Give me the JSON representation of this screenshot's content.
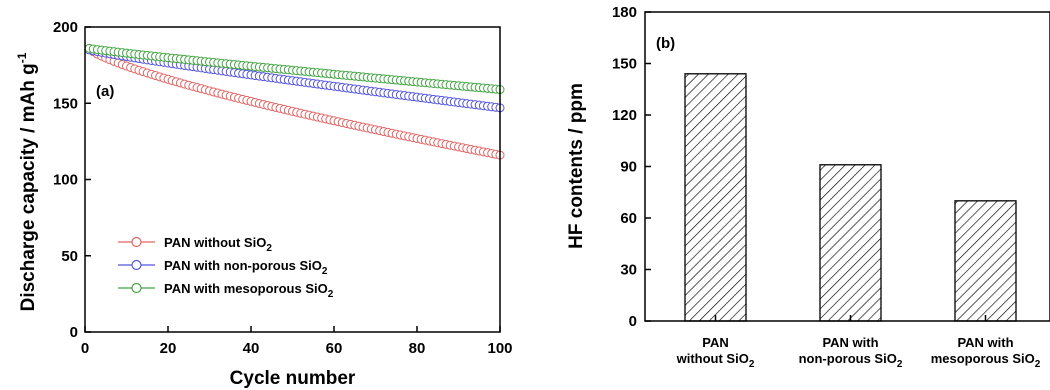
{
  "chart_data": [
    {
      "type": "scatter",
      "panel_label": "(a)",
      "xlabel": "Cycle number",
      "ylabel": "Discharge capacity / mAh g",
      "ylabel_superscript": "-1",
      "xlim": [
        0,
        100
      ],
      "ylim": [
        0,
        200
      ],
      "xticks": [
        0,
        20,
        40,
        60,
        80,
        100
      ],
      "yticks": [
        0,
        50,
        100,
        150,
        200
      ],
      "grid": false,
      "legend_position": "bottom-left",
      "series": [
        {
          "name": "PAN without SiO",
          "name_sub": "2",
          "color": "#e06666",
          "start": 186,
          "end": 116
        },
        {
          "name": "PAN with non-porous SiO",
          "name_sub": "2",
          "color": "#5555dd",
          "start": 185,
          "end": 147
        },
        {
          "name": "PAN with mesoporous SiO",
          "name_sub": "2",
          "color": "#44a444",
          "start": 186,
          "end": 159
        }
      ]
    },
    {
      "type": "bar",
      "panel_label": "(b)",
      "xlabel": "",
      "ylabel": "HF contents / ppm",
      "ylim": [
        0,
        180
      ],
      "yticks": [
        0,
        30,
        60,
        90,
        120,
        150,
        180
      ],
      "grid": false,
      "pattern": "diagonal-hatch",
      "categories": [
        {
          "line1": "PAN",
          "line2": "without SiO",
          "sub": "2"
        },
        {
          "line1": "PAN with",
          "line2": "non-porous SiO",
          "sub": "2"
        },
        {
          "line1": "PAN with",
          "line2": "mesoporous SiO",
          "sub": "2"
        }
      ],
      "values": [
        144,
        91,
        70
      ]
    }
  ]
}
